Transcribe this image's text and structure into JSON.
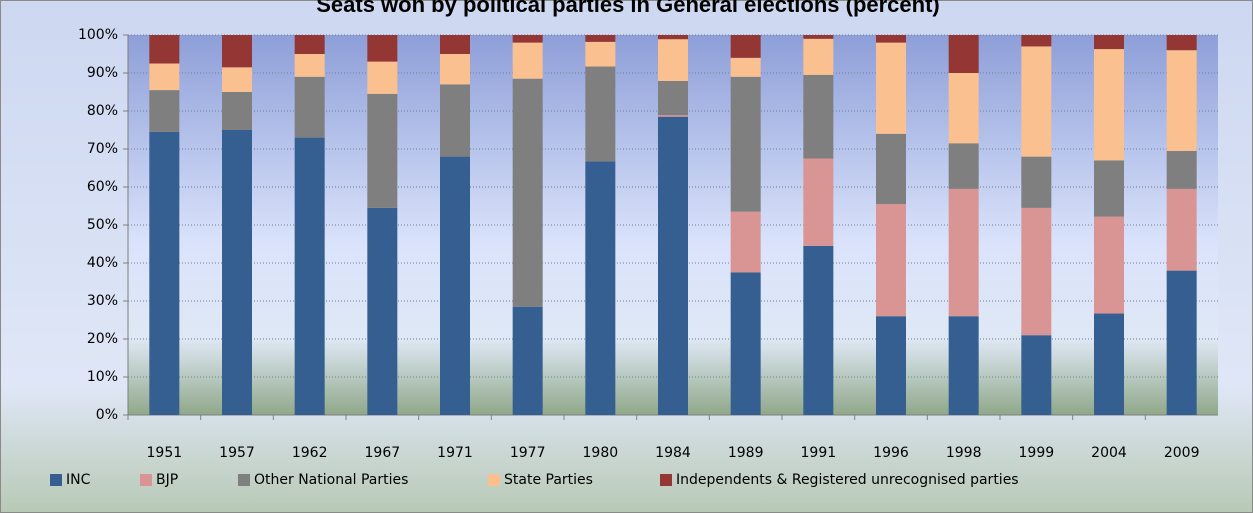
{
  "chart_data": {
    "type": "stacked-bar",
    "title": "Seats won by political parties in General elections (percent)",
    "categories": [
      "1951",
      "1957",
      "1962",
      "1967",
      "1971",
      "1977",
      "1980",
      "1984",
      "1989",
      "1991",
      "1996",
      "1998",
      "1999",
      "2004",
      "2009"
    ],
    "series": [
      {
        "name": "INC",
        "color": "#355f91",
        "values": [
          74.5,
          75,
          73,
          54.5,
          68,
          28.5,
          66.7,
          78.5,
          37.5,
          44.5,
          26,
          26,
          21,
          26.7,
          38
        ]
      },
      {
        "name": "BJP",
        "color": "#d99594",
        "values": [
          0,
          0,
          0,
          0,
          0,
          0,
          0,
          0.4,
          16,
          23,
          29.5,
          33.5,
          33.5,
          25.5,
          21.5
        ]
      },
      {
        "name": "Other National Parties",
        "color": "#7f7f7f",
        "values": [
          11,
          10,
          16,
          30,
          19,
          60,
          25,
          9,
          35.5,
          22,
          18.5,
          12,
          13.5,
          14.8,
          10
        ]
      },
      {
        "name": "State Parties",
        "color": "#fac08f",
        "values": [
          7,
          6.5,
          6,
          8.5,
          8,
          9.5,
          6.5,
          11,
          5,
          9.5,
          24,
          18.5,
          29,
          29.3,
          26.5
        ]
      },
      {
        "name": "Independents & Registered unrecognised parties",
        "color": "#943634",
        "values": [
          7.5,
          8.5,
          5,
          7,
          5,
          2,
          1.8,
          1.1,
          6,
          1,
          2,
          10,
          3,
          3.7,
          4
        ]
      }
    ],
    "ylim": [
      0,
      100
    ],
    "yticks": [
      {
        "value": 0,
        "label": "0%"
      },
      {
        "value": 10,
        "label": "10%"
      },
      {
        "value": 20,
        "label": "20%"
      },
      {
        "value": 30,
        "label": "30%"
      },
      {
        "value": 40,
        "label": "40%"
      },
      {
        "value": 50,
        "label": "50%"
      },
      {
        "value": 60,
        "label": "60%"
      },
      {
        "value": 70,
        "label": "70%"
      },
      {
        "value": 80,
        "label": "80%"
      },
      {
        "value": 90,
        "label": "90%"
      },
      {
        "value": 100,
        "label": "100%"
      }
    ],
    "grid": true,
    "legend": "bottom"
  }
}
